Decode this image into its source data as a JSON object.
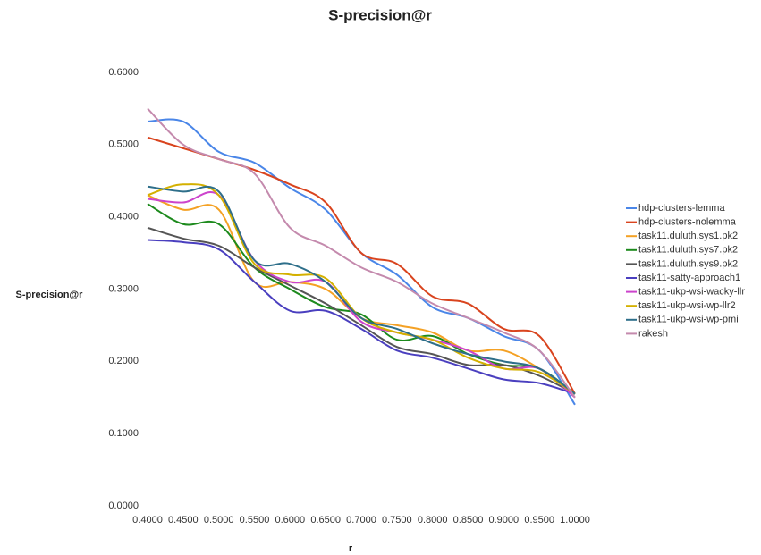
{
  "chart_data": {
    "type": "line",
    "title": "S-precision@r",
    "x_label": "r",
    "y_label": "S-precision@r",
    "x": [
      0.4,
      0.45,
      0.5,
      0.55,
      0.6,
      0.65,
      0.7,
      0.75,
      0.8,
      0.85,
      0.9,
      0.95,
      1.0
    ],
    "xlim": [
      0.4,
      1.0
    ],
    "xticks": [
      {
        "value": 0.4,
        "label": "0.4000"
      },
      {
        "value": 0.45,
        "label": "0.4500"
      },
      {
        "value": 0.5,
        "label": "0.5000"
      },
      {
        "value": 0.55,
        "label": "0.5500"
      },
      {
        "value": 0.6,
        "label": "0.6000"
      },
      {
        "value": 0.65,
        "label": "0.6500"
      },
      {
        "value": 0.7,
        "label": "0.7000"
      },
      {
        "value": 0.75,
        "label": "0.7500"
      },
      {
        "value": 0.8,
        "label": "0.8000"
      },
      {
        "value": 0.85,
        "label": "0.8500"
      },
      {
        "value": 0.9,
        "label": "0.9000"
      },
      {
        "value": 0.95,
        "label": "0.9500"
      },
      {
        "value": 1.0,
        "label": "1.0000"
      }
    ],
    "ylim": [
      0,
      0.6
    ],
    "yticks": [
      {
        "value": 0,
        "label": "0.0000"
      },
      {
        "value": 0.1,
        "label": "0.1000"
      },
      {
        "value": 0.2,
        "label": "0.2000"
      },
      {
        "value": 0.3,
        "label": "0.3000"
      },
      {
        "value": 0.4,
        "label": "0.4000"
      },
      {
        "value": 0.5,
        "label": "0.5000"
      },
      {
        "value": 0.6,
        "label": "0.6000"
      }
    ],
    "grid": false,
    "legend": "right",
    "series": [
      {
        "name": "hdp-clusters-lemma",
        "color": "#4a86e8",
        "values": [
          0.532,
          0.532,
          0.49,
          0.475,
          0.44,
          0.41,
          0.35,
          0.32,
          0.275,
          0.26,
          0.235,
          0.215,
          0.14
        ]
      },
      {
        "name": "hdp-clusters-nolemma",
        "color": "#d9441e",
        "values": [
          0.51,
          0.495,
          0.48,
          0.465,
          0.445,
          0.42,
          0.35,
          0.335,
          0.29,
          0.28,
          0.245,
          0.235,
          0.155
        ]
      },
      {
        "name": "task11.duluth.sys1.pk2",
        "color": "#f4a124",
        "values": [
          0.43,
          0.41,
          0.41,
          0.31,
          0.31,
          0.3,
          0.26,
          0.25,
          0.24,
          0.215,
          0.215,
          0.19,
          0.155
        ]
      },
      {
        "name": "task11.duluth.sys7.pk2",
        "color": "#1d8a1d",
        "values": [
          0.418,
          0.39,
          0.39,
          0.33,
          0.3,
          0.275,
          0.265,
          0.23,
          0.235,
          0.21,
          0.195,
          0.19,
          0.155
        ]
      },
      {
        "name": "task11.duluth.sys9.pk2",
        "color": "#555555",
        "values": [
          0.385,
          0.37,
          0.36,
          0.33,
          0.305,
          0.28,
          0.25,
          0.22,
          0.21,
          0.195,
          0.195,
          0.18,
          0.155
        ]
      },
      {
        "name": "task11-satty-approach1",
        "color": "#4a3fbf",
        "values": [
          0.368,
          0.365,
          0.355,
          0.31,
          0.27,
          0.27,
          0.245,
          0.215,
          0.205,
          0.19,
          0.175,
          0.17,
          0.155
        ]
      },
      {
        "name": "task11-ukp-wsi-wacky-llr",
        "color": "#cc44cc",
        "values": [
          0.425,
          0.42,
          0.43,
          0.34,
          0.31,
          0.31,
          0.255,
          0.24,
          0.23,
          0.215,
          0.19,
          0.19,
          0.15
        ]
      },
      {
        "name": "task11-ukp-wsi-wp-llr2",
        "color": "#d4b000",
        "values": [
          0.43,
          0.445,
          0.43,
          0.335,
          0.32,
          0.315,
          0.26,
          0.24,
          0.23,
          0.205,
          0.19,
          0.185,
          0.155
        ]
      },
      {
        "name": "task11-ukp-wsi-wp-pmi",
        "color": "#2e6f8a",
        "values": [
          0.442,
          0.435,
          0.435,
          0.34,
          0.335,
          0.31,
          0.26,
          0.245,
          0.225,
          0.21,
          0.2,
          0.19,
          0.155
        ]
      },
      {
        "name": "rakesh",
        "color": "#c48aad",
        "values": [
          0.55,
          0.5,
          0.48,
          0.46,
          0.385,
          0.36,
          0.33,
          0.31,
          0.28,
          0.26,
          0.24,
          0.215,
          0.15
        ]
      }
    ]
  }
}
